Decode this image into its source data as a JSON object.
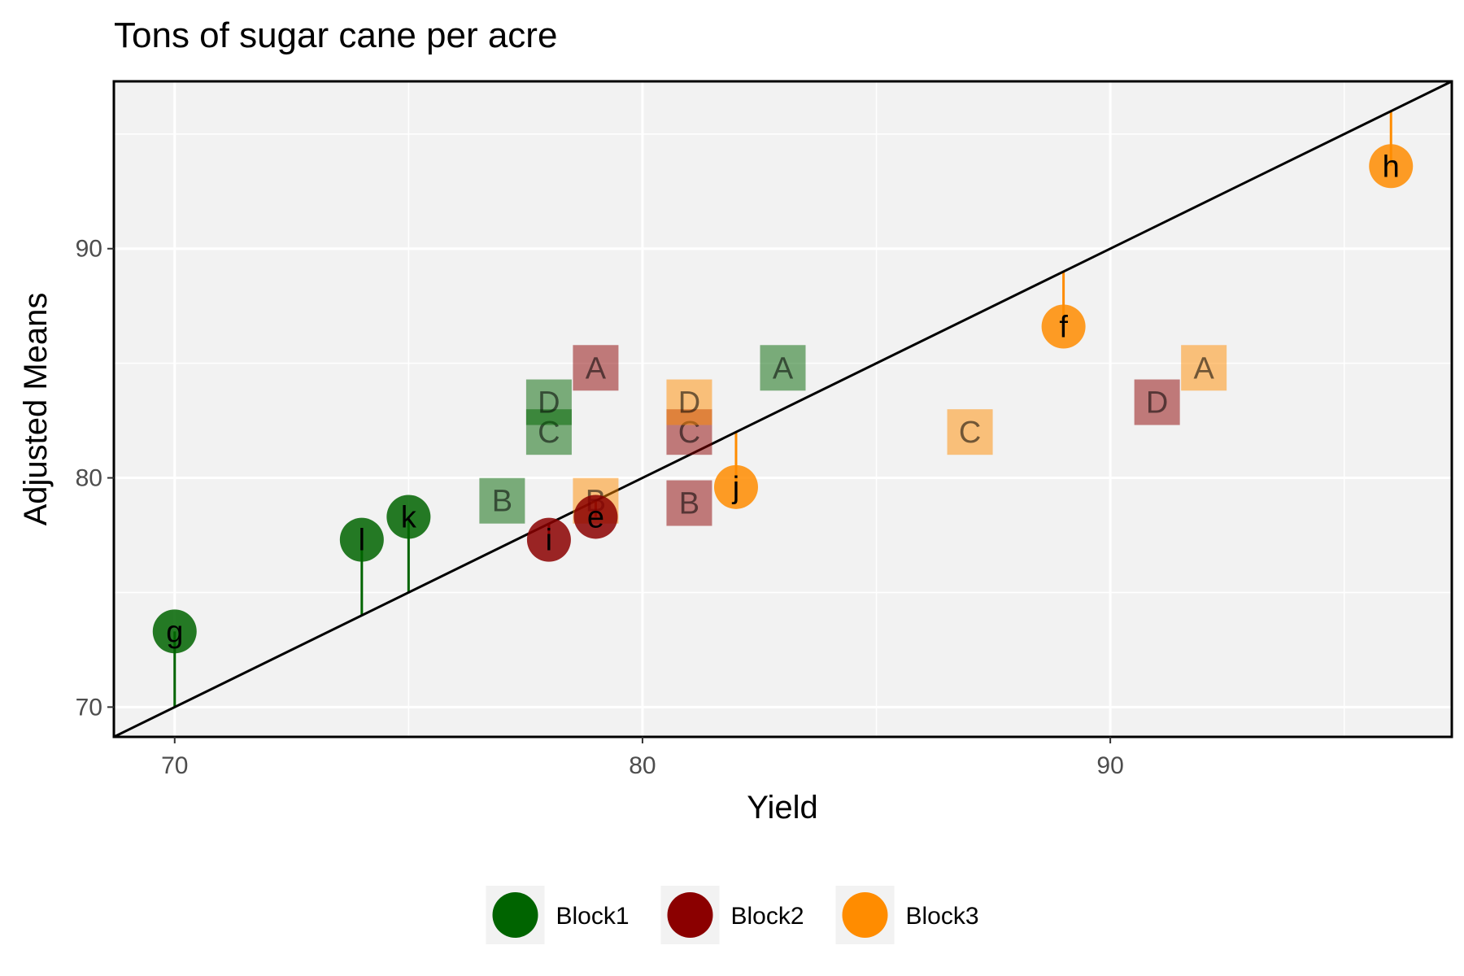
{
  "chart_data": {
    "type": "scatter",
    "title": "Tons of sugar cane per acre",
    "xlabel": "Yield",
    "ylabel": "Adjusted Means",
    "xlim": [
      68.7,
      97.3
    ],
    "ylim": [
      68.7,
      97.3
    ],
    "x_ticks": [
      70,
      80,
      90
    ],
    "y_ticks": [
      70,
      80,
      90
    ],
    "grid": true,
    "legend_position": "bottom",
    "reference_line": "y = x",
    "colors": {
      "Block1": "#006400",
      "Block2": "#8B0000",
      "Block3": "#FF8C00"
    },
    "legend": [
      {
        "name": "Block1",
        "color": "#006400"
      },
      {
        "name": "Block2",
        "color": "#8B0000"
      },
      {
        "name": "Block3",
        "color": "#FF8C00"
      }
    ],
    "check_points": [
      {
        "label": "g",
        "block": "Block1",
        "x": 70.0,
        "y": 73.3
      },
      {
        "label": "l",
        "block": "Block1",
        "x": 74.0,
        "y": 77.3
      },
      {
        "label": "k",
        "block": "Block1",
        "x": 75.0,
        "y": 78.3
      },
      {
        "label": "i",
        "block": "Block2",
        "x": 78.0,
        "y": 77.3
      },
      {
        "label": "e",
        "block": "Block2",
        "x": 79.0,
        "y": 78.3
      },
      {
        "label": "j",
        "block": "Block3",
        "x": 82.0,
        "y": 79.6
      },
      {
        "label": "f",
        "block": "Block3",
        "x": 89.0,
        "y": 86.6
      },
      {
        "label": "h",
        "block": "Block3",
        "x": 96.0,
        "y": 93.6
      }
    ],
    "treatment_points": [
      {
        "label": "A",
        "block": "Block1",
        "x": 83.0,
        "y": 84.8
      },
      {
        "label": "B",
        "block": "Block1",
        "x": 77.0,
        "y": 79.0
      },
      {
        "label": "C",
        "block": "Block1",
        "x": 78.0,
        "y": 82.0
      },
      {
        "label": "D",
        "block": "Block1",
        "x": 78.0,
        "y": 83.3
      },
      {
        "label": "A",
        "block": "Block2",
        "x": 79.0,
        "y": 84.8
      },
      {
        "label": "B",
        "block": "Block2",
        "x": 81.0,
        "y": 78.9
      },
      {
        "label": "C",
        "block": "Block2",
        "x": 81.0,
        "y": 82.0
      },
      {
        "label": "D",
        "block": "Block2",
        "x": 91.0,
        "y": 83.3
      },
      {
        "label": "A",
        "block": "Block3",
        "x": 92.0,
        "y": 84.8
      },
      {
        "label": "B",
        "block": "Block3",
        "x": 79.0,
        "y": 79.0
      },
      {
        "label": "C",
        "block": "Block3",
        "x": 87.0,
        "y": 82.0
      },
      {
        "label": "D",
        "block": "Block3",
        "x": 81.0,
        "y": 83.3
      }
    ]
  }
}
